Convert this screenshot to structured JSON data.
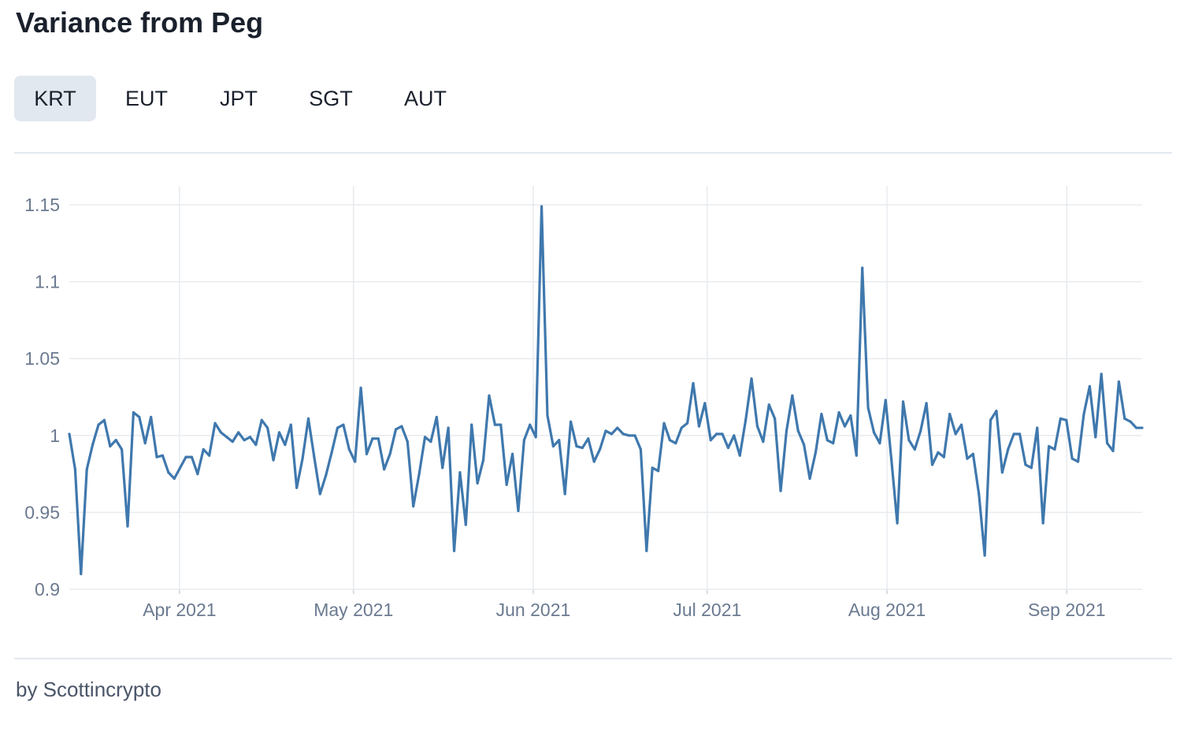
{
  "title": "Variance from Peg",
  "tabs": [
    {
      "label": "KRT",
      "active": true
    },
    {
      "label": "EUT",
      "active": false
    },
    {
      "label": "JPT",
      "active": false
    },
    {
      "label": "SGT",
      "active": false
    },
    {
      "label": "AUT",
      "active": false
    }
  ],
  "footer": "by Scottincrypto",
  "colors": {
    "line": "#3f78ad",
    "grid": "#e8ebef",
    "tick": "#6b7a90",
    "tab_active_bg": "#e2e8f0"
  },
  "chart_data": {
    "type": "line",
    "title": "",
    "xlabel": "",
    "ylabel": "",
    "x_start": "2021-03-13",
    "x_end": "2021-09-14",
    "ylim": [
      0.9,
      1.15
    ],
    "yticks": [
      0.9,
      0.95,
      1,
      1.05,
      1.1,
      1.15
    ],
    "ytick_labels": [
      "0.9",
      "0.95",
      "1",
      "1.05",
      "1.1",
      "1.15"
    ],
    "xticks": [
      "2021-04-01",
      "2021-05-01",
      "2021-06-01",
      "2021-07-01",
      "2021-08-01",
      "2021-09-01"
    ],
    "xtick_labels": [
      "Apr 2021",
      "May 2021",
      "Jun 2021",
      "Jul 2021",
      "Aug 2021",
      "Sep 2021"
    ],
    "grid": true,
    "series": [
      {
        "values": [
          1.001,
          0.978,
          0.91,
          0.978,
          0.994,
          1.007,
          1.01,
          0.993,
          0.997,
          0.991,
          0.941,
          1.015,
          1.012,
          0.995,
          1.012,
          0.986,
          0.987,
          0.976,
          0.972,
          0.979,
          0.986,
          0.986,
          0.975,
          0.991,
          0.987,
          1.008,
          1.002,
          0.999,
          0.996,
          1.002,
          0.997,
          0.999,
          0.994,
          1.01,
          1.005,
          0.984,
          1.002,
          0.994,
          1.007,
          0.966,
          0.985,
          1.011,
          0.986,
          0.962,
          0.974,
          0.989,
          1.005,
          1.007,
          0.991,
          0.983,
          1.031,
          0.988,
          0.998,
          0.998,
          0.978,
          0.988,
          1.004,
          1.006,
          0.996,
          0.954,
          0.975,
          0.999,
          0.996,
          1.012,
          0.979,
          1.005,
          0.925,
          0.976,
          0.942,
          1.007,
          0.969,
          0.984,
          1.026,
          1.007,
          1.007,
          0.968,
          0.988,
          0.951,
          0.997,
          1.007,
          0.999,
          1.149,
          1.013,
          0.993,
          0.997,
          0.962,
          1.009,
          0.993,
          0.992,
          0.998,
          0.983,
          0.991,
          1.003,
          1.001,
          1.005,
          1.001,
          1.0,
          1.0,
          0.991,
          0.925,
          0.979,
          0.977,
          1.008,
          0.997,
          0.995,
          1.005,
          1.008,
          1.034,
          1.006,
          1.021,
          0.997,
          1.001,
          1.001,
          0.992,
          1.0,
          0.987,
          1.01,
          1.037,
          1.006,
          0.996,
          1.02,
          1.011,
          0.964,
          1.003,
          1.026,
          1.003,
          0.994,
          0.972,
          0.989,
          1.014,
          0.997,
          0.995,
          1.015,
          1.006,
          1.013,
          0.987,
          1.109,
          1.018,
          1.002,
          0.995,
          1.023,
          0.984,
          0.943,
          1.022,
          0.997,
          0.991,
          1.003,
          1.021,
          0.981,
          0.989,
          0.986,
          1.014,
          1.001,
          1.007,
          0.985,
          0.988,
          0.962,
          0.922,
          1.01,
          1.016,
          0.976,
          0.991,
          1.001,
          1.001,
          0.981,
          0.979,
          1.005,
          0.943,
          0.993,
          0.991,
          1.011,
          1.01,
          0.985,
          0.983,
          1.014,
          1.032,
          0.999,
          1.04,
          0.995,
          0.99,
          1.035,
          1.011,
          1.009,
          1.005,
          1.005
        ]
      }
    ]
  }
}
